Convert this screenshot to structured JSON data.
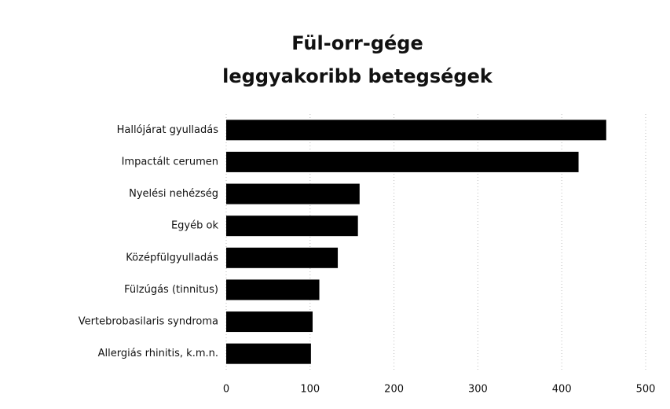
{
  "chart_data": {
    "type": "barh",
    "title": [
      "Fül-orr-gége",
      "leggyakoribb betegségek"
    ],
    "categories": [
      "Hallójárat gyulladás",
      "Impactált cerumen",
      "Nyelési nehézség",
      "Egyéb ok",
      "Középfülgyulladás",
      "Fülzúgás (tinnitus)",
      "Vertebrobasilaris syndroma",
      "Allergiás rhinitis, k.m.n."
    ],
    "values": [
      453,
      420,
      159,
      157,
      133,
      111,
      103,
      101
    ],
    "color": "#000000",
    "xlim": [
      0,
      500
    ],
    "xticks": [
      0,
      100,
      200,
      300,
      400,
      500
    ],
    "grid": true
  }
}
